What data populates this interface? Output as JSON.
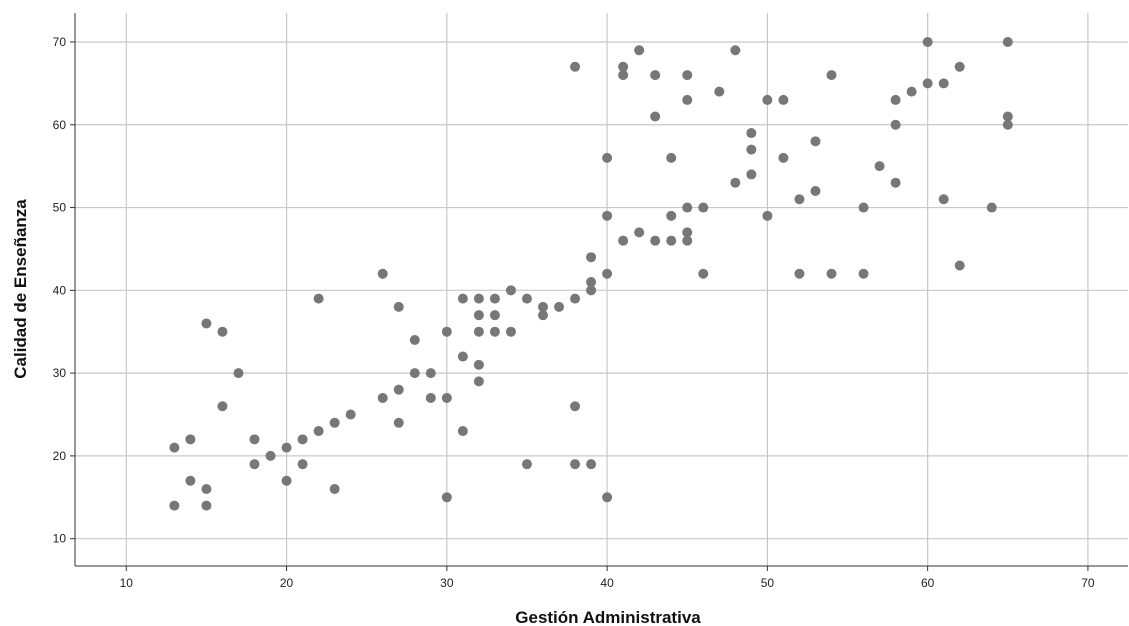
{
  "chart_data": {
    "type": "scatter",
    "xlabel": "Gestión Administrativa",
    "ylabel": "Calidad de Enseñanza",
    "xlim": [
      6.8,
      72.5
    ],
    "ylim": [
      6.7,
      73.5
    ],
    "xticks": [
      10,
      20,
      30,
      40,
      50,
      60,
      70
    ],
    "yticks": [
      10,
      20,
      30,
      40,
      50,
      60,
      70
    ],
    "grid": true,
    "marker_color": "#777777",
    "grid_color": "#c8c8c8",
    "points": [
      [
        13,
        21
      ],
      [
        13,
        14
      ],
      [
        14,
        22
      ],
      [
        14,
        17
      ],
      [
        15,
        36
      ],
      [
        15,
        16
      ],
      [
        15,
        14
      ],
      [
        16,
        35
      ],
      [
        16,
        26
      ],
      [
        17,
        30
      ],
      [
        18,
        22
      ],
      [
        18,
        19
      ],
      [
        19,
        20
      ],
      [
        20,
        21
      ],
      [
        20,
        17
      ],
      [
        21,
        22
      ],
      [
        21,
        19
      ],
      [
        22,
        39
      ],
      [
        22,
        23
      ],
      [
        23,
        24
      ],
      [
        23,
        16
      ],
      [
        24,
        25
      ],
      [
        26,
        42
      ],
      [
        26,
        27
      ],
      [
        27,
        38
      ],
      [
        27,
        28
      ],
      [
        27,
        24
      ],
      [
        28,
        34
      ],
      [
        28,
        30
      ],
      [
        29,
        30
      ],
      [
        29,
        27
      ],
      [
        30,
        35
      ],
      [
        30,
        27
      ],
      [
        30,
        15
      ],
      [
        31,
        39
      ],
      [
        31,
        32
      ],
      [
        31,
        23
      ],
      [
        32,
        39
      ],
      [
        32,
        37
      ],
      [
        32,
        35
      ],
      [
        32,
        31
      ],
      [
        32,
        29
      ],
      [
        33,
        39
      ],
      [
        33,
        37
      ],
      [
        33,
        35
      ],
      [
        34,
        40
      ],
      [
        34,
        35
      ],
      [
        35,
        39
      ],
      [
        35,
        19
      ],
      [
        36,
        38
      ],
      [
        36,
        37
      ],
      [
        37,
        38
      ],
      [
        38,
        67
      ],
      [
        38,
        39
      ],
      [
        38,
        26
      ],
      [
        38,
        19
      ],
      [
        39,
        44
      ],
      [
        39,
        41
      ],
      [
        39,
        40
      ],
      [
        39,
        19
      ],
      [
        40,
        56
      ],
      [
        40,
        49
      ],
      [
        40,
        42
      ],
      [
        40,
        15
      ],
      [
        41,
        67
      ],
      [
        41,
        66
      ],
      [
        41,
        46
      ],
      [
        42,
        69
      ],
      [
        42,
        47
      ],
      [
        43,
        66
      ],
      [
        43,
        61
      ],
      [
        43,
        46
      ],
      [
        44,
        56
      ],
      [
        44,
        49
      ],
      [
        44,
        46
      ],
      [
        45,
        66
      ],
      [
        45,
        63
      ],
      [
        45,
        50
      ],
      [
        45,
        47
      ],
      [
        45,
        46
      ],
      [
        46,
        50
      ],
      [
        46,
        42
      ],
      [
        47,
        64
      ],
      [
        48,
        69
      ],
      [
        48,
        53
      ],
      [
        49,
        59
      ],
      [
        49,
        57
      ],
      [
        49,
        54
      ],
      [
        50,
        63
      ],
      [
        50,
        49
      ],
      [
        51,
        63
      ],
      [
        51,
        56
      ],
      [
        52,
        51
      ],
      [
        52,
        42
      ],
      [
        53,
        58
      ],
      [
        53,
        52
      ],
      [
        54,
        66
      ],
      [
        54,
        42
      ],
      [
        56,
        50
      ],
      [
        56,
        42
      ],
      [
        57,
        55
      ],
      [
        58,
        63
      ],
      [
        58,
        60
      ],
      [
        58,
        53
      ],
      [
        59,
        64
      ],
      [
        60,
        70
      ],
      [
        60,
        65
      ],
      [
        61,
        65
      ],
      [
        61,
        51
      ],
      [
        62,
        67
      ],
      [
        62,
        43
      ],
      [
        64,
        50
      ],
      [
        65,
        70
      ],
      [
        65,
        61
      ],
      [
        65,
        60
      ]
    ]
  }
}
